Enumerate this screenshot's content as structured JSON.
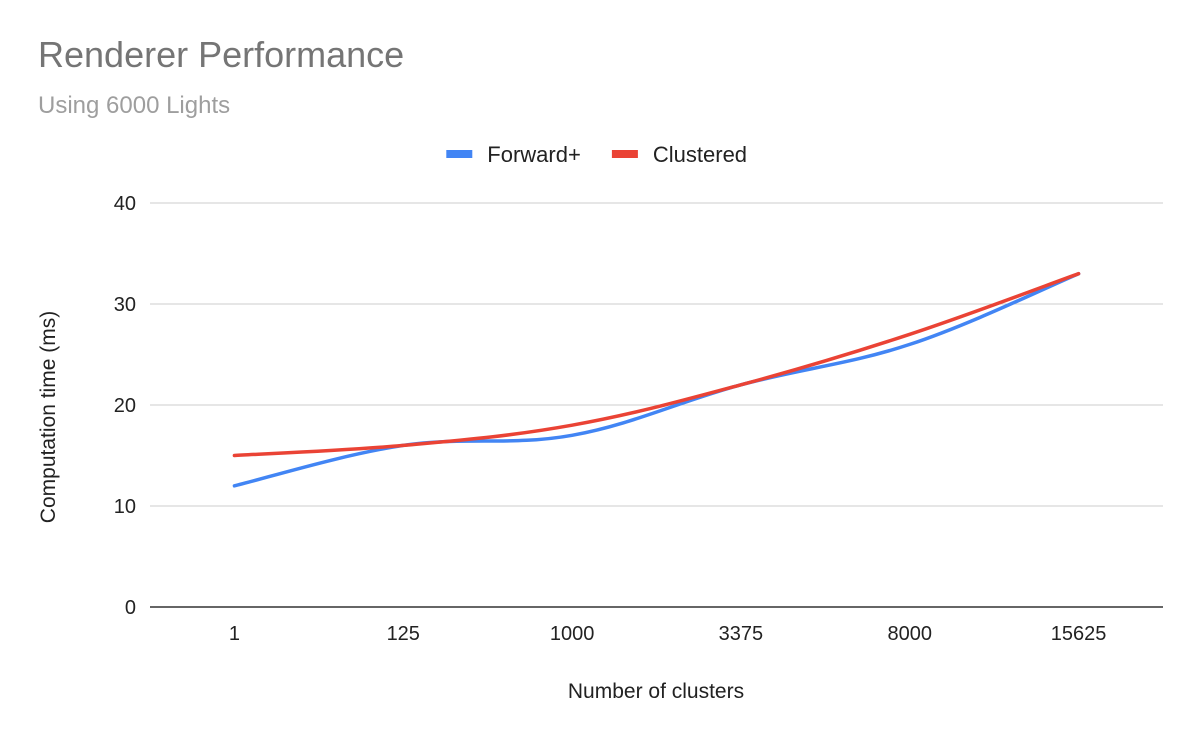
{
  "chart_data": {
    "type": "line",
    "title": "Renderer Performance",
    "subtitle": "Using 6000 Lights",
    "xlabel": "Number of clusters",
    "ylabel": "Computation time (ms)",
    "categories": [
      "1",
      "125",
      "1000",
      "3375",
      "8000",
      "15625"
    ],
    "ylim": [
      0,
      40
    ],
    "yticks": [
      0,
      10,
      20,
      30,
      40
    ],
    "grid": true,
    "legend_position": "top",
    "smooth": true,
    "series": [
      {
        "name": "Forward+",
        "color": "#4285f4",
        "values": [
          12,
          16,
          17,
          22,
          26,
          33
        ]
      },
      {
        "name": "Clustered",
        "color": "#ea4335",
        "values": [
          15,
          16,
          18,
          22,
          27,
          33
        ]
      }
    ]
  }
}
